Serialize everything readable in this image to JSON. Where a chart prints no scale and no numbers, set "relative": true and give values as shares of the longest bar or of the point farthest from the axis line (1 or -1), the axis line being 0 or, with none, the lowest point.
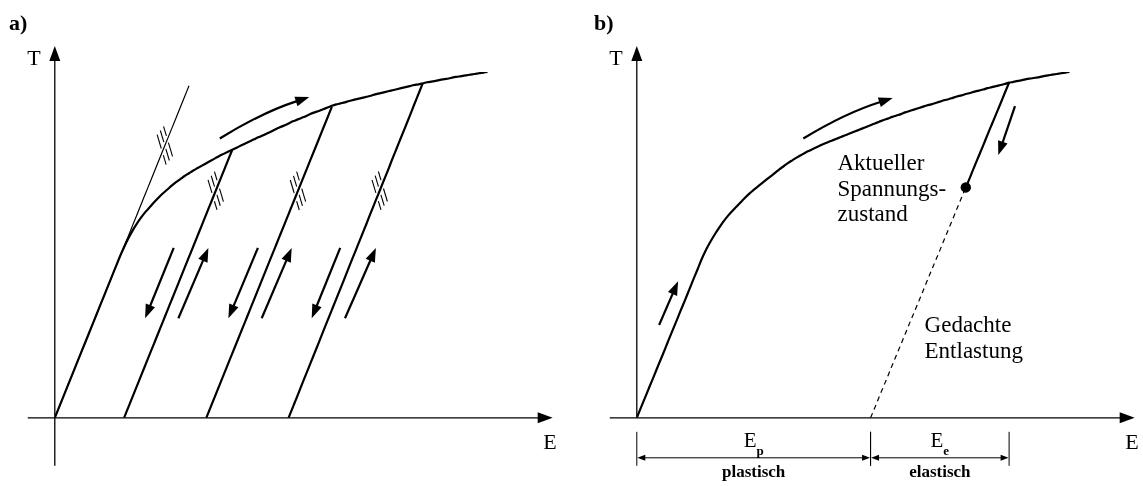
{
  "chart_data": [
    {
      "type": "line",
      "title": "a)",
      "xlabel": "E",
      "ylabel": "T",
      "relative": true,
      "tick_labels": false,
      "marker": "none",
      "categories": [
        null,
        null,
        null,
        null,
        null,
        null,
        null,
        null,
        null,
        null,
        null,
        null,
        null,
        null,
        null,
        null,
        null,
        null,
        null,
        null,
        null,
        null,
        null,
        null,
        null,
        null,
        null,
        null,
        null,
        null,
        null,
        null,
        null,
        null,
        null,
        null,
        null,
        null,
        null,
        null,
        null,
        null,
        null,
        null,
        null,
        null,
        null,
        null,
        null,
        null,
        null,
        null,
        null,
        null,
        null,
        null,
        null,
        null,
        null,
        null,
        null,
        null,
        null,
        null,
        null,
        null,
        null,
        null,
        null,
        null,
        null,
        null,
        null,
        null,
        null,
        null,
        null,
        null,
        null,
        null,
        null,
        null,
        null,
        null,
        null,
        null,
        null,
        null,
        null,
        null,
        null,
        null,
        null,
        null,
        null,
        null,
        null,
        null,
        null,
        null,
        null
      ],
      "series": [
        {
          "color": "#000000",
          "values": [
            0,
            0.031,
            0.062,
            0.093,
            0.124,
            0.155,
            0.186,
            0.217,
            0.248,
            0.279,
            0.31,
            0.341,
            0.372,
            0.403,
            0.434,
            0.465,
            0.493,
            0.519,
            0.542,
            0.562,
            0.58,
            0.596,
            0.61,
            0.624,
            0.637,
            0.649,
            0.66,
            0.671,
            0.681,
            0.69,
            0.699,
            0.707,
            0.715,
            0.722,
            0.729,
            0.736,
            0.743,
            0.75,
            0.757,
            0.763,
            0.769,
            0.775,
            0.781,
            0.787,
            0.793,
            0.799,
            0.805,
            0.811,
            0.816,
            0.822,
            0.828,
            0.834,
            0.84,
            0.845,
            0.851,
            0.857,
            0.862,
            0.867,
            0.872,
            0.878,
            0.883,
            0.887,
            0.892,
            0.897,
            0.902,
            0.906,
            0.909,
            0.912,
            0.916,
            0.919,
            0.922,
            0.925,
            0.928,
            0.931,
            0.935,
            0.938,
            0.941,
            0.944,
            0.947,
            0.95,
            0.953,
            0.956,
            0.959,
            0.962,
            0.964,
            0.967,
            0.97,
            0.972,
            0.974,
            0.977,
            0.979,
            0.981,
            0.984,
            0.986,
            0.988,
            0.99,
            0.992,
            0.994,
            0.996,
            0.998,
            1
          ]
        },
        {
          "color": "#000000",
          "values": [
            0,
            0.031,
            0.062,
            0.093,
            0.124,
            0.155,
            0.186,
            0.217,
            0.248,
            0.279,
            0.31,
            0.341,
            0.372,
            0.403,
            0.434,
            0.465,
            0.496,
            0.526,
            0.557,
            0.588,
            0.619,
            0.65,
            0.681,
            0.712,
            0.743,
            0.774,
            0.805,
            0.836,
            0.867,
            0.898,
            0.929,
            0.96,
            null,
            null,
            null,
            null,
            null,
            null,
            null,
            null,
            null,
            null,
            null,
            null,
            null,
            null,
            null,
            null,
            null,
            null,
            null,
            null,
            null,
            null,
            null,
            null,
            null,
            null,
            null,
            null,
            null,
            null,
            null,
            null,
            null,
            null,
            null,
            null,
            null,
            null,
            null,
            null,
            null,
            null,
            null,
            null,
            null,
            null,
            null,
            null,
            null,
            null,
            null,
            null,
            null,
            null,
            null,
            null,
            null,
            null,
            null,
            null,
            null,
            null,
            null,
            null,
            null,
            null,
            null,
            null,
            null
          ]
        },
        {
          "color": "#000000",
          "values": [
            null,
            null,
            null,
            null,
            null,
            null,
            null,
            null,
            null,
            null,
            null,
            null,
            null,
            null,
            null,
            null,
            0,
            0.031,
            0.062,
            0.093,
            0.124,
            0.155,
            0.186,
            0.217,
            0.248,
            0.279,
            0.31,
            0.341,
            0.372,
            0.403,
            0.434,
            0.465,
            0.496,
            0.527,
            0.558,
            0.589,
            0.62,
            0.651,
            0.682,
            0.713,
            0.744,
            0.775,
            null,
            null,
            null,
            null,
            null,
            null,
            null,
            null,
            null,
            null,
            null,
            null,
            null,
            null,
            null,
            null,
            null,
            null,
            null,
            null,
            null,
            null,
            null,
            null,
            null,
            null,
            null,
            null,
            null,
            null,
            null,
            null,
            null,
            null,
            null,
            null,
            null,
            null,
            null,
            null,
            null,
            null,
            null,
            null,
            null,
            null,
            null,
            null,
            null,
            null,
            null,
            null,
            null,
            null,
            null,
            null,
            null,
            null,
            null
          ]
        },
        {
          "color": "#000000",
          "values": [
            null,
            null,
            null,
            null,
            null,
            null,
            null,
            null,
            null,
            null,
            null,
            null,
            null,
            null,
            null,
            null,
            null,
            null,
            null,
            null,
            null,
            null,
            null,
            null,
            null,
            null,
            null,
            null,
            null,
            null,
            null,
            null,
            null,
            null,
            null,
            0,
            0.031,
            0.062,
            0.093,
            0.124,
            0.155,
            0.186,
            0.217,
            0.248,
            0.279,
            0.31,
            0.341,
            0.372,
            0.403,
            0.434,
            0.465,
            0.496,
            0.527,
            0.558,
            0.589,
            0.62,
            0.651,
            0.682,
            0.713,
            0.744,
            0.775,
            0.806,
            0.837,
            0.868,
            0.899,
            null,
            null,
            null,
            null,
            null,
            null,
            null,
            null,
            null,
            null,
            null,
            null,
            null,
            null,
            null,
            null,
            null,
            null,
            null,
            null,
            null,
            null,
            null,
            null,
            null,
            null,
            null,
            null,
            null,
            null,
            null,
            null,
            null,
            null,
            null,
            null
          ]
        },
        {
          "color": "#000000",
          "values": [
            null,
            null,
            null,
            null,
            null,
            null,
            null,
            null,
            null,
            null,
            null,
            null,
            null,
            null,
            null,
            null,
            null,
            null,
            null,
            null,
            null,
            null,
            null,
            null,
            null,
            null,
            null,
            null,
            null,
            null,
            null,
            null,
            null,
            null,
            null,
            null,
            null,
            null,
            null,
            null,
            null,
            null,
            null,
            null,
            null,
            null,
            null,
            null,
            null,
            null,
            null,
            null,
            null,
            null,
            0,
            0.031,
            0.062,
            0.094,
            0.125,
            0.156,
            0.187,
            0.218,
            0.25,
            0.281,
            0.312,
            0.343,
            0.374,
            0.405,
            0.437,
            0.468,
            0.499,
            0.53,
            0.561,
            0.593,
            0.624,
            0.655,
            0.686,
            0.717,
            0.749,
            0.78,
            0.811,
            0.842,
            0.873,
            0.905,
            0.936,
            0.967,
            null,
            null,
            null,
            null,
            null,
            null,
            null,
            null,
            null,
            null,
            null,
            null,
            null,
            null,
            null
          ]
        }
      ]
    },
    {
      "type": "line",
      "title": "b)",
      "xlabel": "E",
      "ylabel": "T",
      "relative": true,
      "tick_labels": false,
      "marker": "none",
      "categories": [
        null,
        null,
        null,
        null,
        null,
        null,
        null,
        null,
        null,
        null,
        null,
        null,
        null,
        null,
        null,
        null,
        null,
        null,
        null,
        null,
        null,
        null,
        null,
        null,
        null,
        null,
        null,
        null,
        null,
        null,
        null,
        null,
        null,
        null,
        null,
        null,
        null,
        null,
        null,
        null,
        null,
        null,
        null,
        null,
        null,
        null,
        null,
        null,
        null,
        null,
        null,
        null,
        null,
        null,
        null,
        null,
        null,
        null,
        null,
        null,
        null,
        null,
        null,
        null,
        null,
        null,
        null,
        null,
        null,
        null,
        null,
        null,
        null,
        null,
        null,
        null,
        null,
        null,
        null,
        null,
        null,
        null,
        null,
        null,
        null,
        null,
        null,
        null,
        null,
        null,
        null,
        null,
        null,
        null,
        null,
        null,
        null,
        null,
        null,
        null,
        null
      ],
      "series": [
        {
          "color": "#000000",
          "values": [
            0,
            0.031,
            0.061,
            0.092,
            0.122,
            0.153,
            0.183,
            0.214,
            0.245,
            0.275,
            0.306,
            0.336,
            0.367,
            0.398,
            0.428,
            0.459,
            0.486,
            0.509,
            0.53,
            0.549,
            0.567,
            0.583,
            0.597,
            0.61,
            0.623,
            0.636,
            0.648,
            0.659,
            0.669,
            0.679,
            0.689,
            0.699,
            0.709,
            0.719,
            0.728,
            0.737,
            0.745,
            0.753,
            0.76,
            0.767,
            0.773,
            0.779,
            0.785,
            0.791,
            0.796,
            0.801,
            0.806,
            0.811,
            0.816,
            0.821,
            0.826,
            0.831,
            0.836,
            0.841,
            0.846,
            0.851,
            0.856,
            0.861,
            0.865,
            0.87,
            0.874,
            0.878,
            0.883,
            0.887,
            0.891,
            0.895,
            0.899,
            0.903,
            0.906,
            0.91,
            0.914,
            0.918,
            0.921,
            0.925,
            0.929,
            0.932,
            0.936,
            0.939,
            0.943,
            0.946,
            0.949,
            0.953,
            0.956,
            0.959,
            0.962,
            0.965,
            0.969,
            0.971,
            0.974,
            0.976,
            0.979,
            0.981,
            0.983,
            0.985,
            0.988,
            0.99,
            0.992,
            0.994,
            0.996,
            0.998,
            1
          ]
        },
        {
          "color": "#000000",
          "values": [
            null,
            null,
            null,
            null,
            null,
            null,
            null,
            null,
            null,
            null,
            null,
            null,
            null,
            null,
            null,
            null,
            null,
            null,
            null,
            null,
            null,
            null,
            null,
            null,
            null,
            null,
            null,
            null,
            null,
            null,
            null,
            null,
            null,
            null,
            null,
            null,
            null,
            null,
            null,
            null,
            null,
            null,
            null,
            null,
            null,
            null,
            null,
            null,
            null,
            null,
            null,
            null,
            null,
            null,
            null,
            null,
            null,
            null,
            null,
            null,
            null,
            null,
            null,
            null,
            null,
            null,
            null,
            null,
            null,
            null,
            null,
            null,
            null,
            null,
            null,
            null,
            0.666,
            0.696,
            0.727,
            0.757,
            0.787,
            0.818,
            0.848,
            0.878,
            0.908,
            0.939,
            0.969,
            null,
            null,
            null,
            null,
            null,
            null,
            null,
            null,
            null,
            null,
            null,
            null,
            null,
            null
          ]
        },
        {
          "color": "#000000",
          "line_style": "dashed",
          "values": [
            null,
            null,
            null,
            null,
            null,
            null,
            null,
            null,
            null,
            null,
            null,
            null,
            null,
            null,
            null,
            null,
            null,
            null,
            null,
            null,
            null,
            null,
            null,
            null,
            null,
            null,
            null,
            null,
            null,
            null,
            null,
            null,
            null,
            null,
            null,
            null,
            null,
            null,
            null,
            null,
            null,
            null,
            null,
            null,
            null,
            null,
            null,
            null,
            null,
            null,
            null,
            null,
            null,
            null,
            0,
            0.03,
            0.061,
            0.091,
            0.121,
            0.152,
            0.182,
            0.212,
            0.242,
            0.273,
            0.303,
            0.333,
            0.363,
            0.394,
            0.424,
            0.454,
            0.484,
            0.515,
            0.545,
            0.575,
            0.606,
            0.636,
            0.666,
            null,
            null,
            null,
            null,
            null,
            null,
            null,
            null,
            null,
            null,
            null,
            null,
            null,
            null,
            null,
            null,
            null,
            null,
            null,
            null,
            null,
            null,
            null,
            null
          ]
        },
        {
          "color": "#000000",
          "marker": "circle",
          "values": [
            null,
            null,
            null,
            null,
            null,
            null,
            null,
            null,
            null,
            null,
            null,
            null,
            null,
            null,
            null,
            null,
            null,
            null,
            null,
            null,
            null,
            null,
            null,
            null,
            null,
            null,
            null,
            null,
            null,
            null,
            null,
            null,
            null,
            null,
            null,
            null,
            null,
            null,
            null,
            null,
            null,
            null,
            null,
            null,
            null,
            null,
            null,
            null,
            null,
            null,
            null,
            null,
            null,
            null,
            null,
            null,
            null,
            null,
            null,
            null,
            null,
            null,
            null,
            null,
            null,
            null,
            null,
            null,
            null,
            null,
            null,
            null,
            null,
            null,
            null,
            null,
            0.666,
            null,
            null,
            null,
            null,
            null,
            null,
            null,
            null,
            null,
            null,
            null,
            null,
            null,
            null,
            null,
            null,
            null,
            null,
            null,
            null,
            null,
            null,
            null,
            null
          ]
        }
      ],
      "annotations": [
        "Aktueller\nSpannungs-\nzustand",
        "Gedachte\nEntlastung",
        "E$_{p}$",
        "plastisch",
        "E$_{e}$",
        "elastisch"
      ]
    }
  ]
}
